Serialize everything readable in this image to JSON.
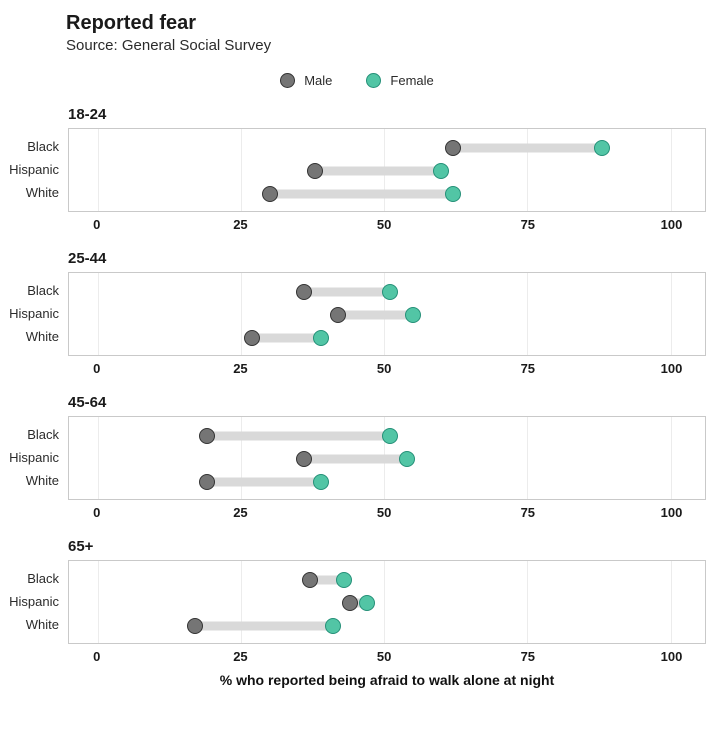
{
  "header": {
    "title": "Reported fear",
    "subtitle": "Source: General Social Survey"
  },
  "legend": {
    "items": [
      {
        "label": "Male",
        "fill": "#757575",
        "stroke": "#333333"
      },
      {
        "label": "Female",
        "fill": "#52c5a5",
        "stroke": "#259078"
      }
    ]
  },
  "chart_data": {
    "type": "scatter",
    "subtype": "dumbbell",
    "title": "Reported fear",
    "subtitle": "Source: General Social Survey",
    "xlabel": "% who reported being afraid to walk alone at night",
    "series_names": [
      "Male",
      "Female"
    ],
    "x_ticks": [
      0,
      25,
      50,
      75,
      100
    ],
    "xlim": [
      -5,
      106
    ],
    "grid": true,
    "legend_position": "top-center",
    "colors": {
      "male_fill": "#757575",
      "male_stroke": "#333333",
      "female_fill": "#52c5a5",
      "female_stroke": "#259078",
      "connector": "#d9d9d9",
      "gridline": "#ececec",
      "panel_border": "#c9c9c9"
    },
    "panels": [
      {
        "title": "18-24",
        "rows": [
          {
            "label": "Black",
            "male": 62,
            "female": 88
          },
          {
            "label": "Hispanic",
            "male": 38,
            "female": 60
          },
          {
            "label": "White",
            "male": 30,
            "female": 62
          }
        ]
      },
      {
        "title": "25-44",
        "rows": [
          {
            "label": "Black",
            "male": 36,
            "female": 51
          },
          {
            "label": "Hispanic",
            "male": 42,
            "female": 55
          },
          {
            "label": "White",
            "male": 27,
            "female": 39
          }
        ]
      },
      {
        "title": "45-64",
        "rows": [
          {
            "label": "Black",
            "male": 19,
            "female": 51
          },
          {
            "label": "Hispanic",
            "male": 36,
            "female": 54
          },
          {
            "label": "White",
            "male": 19,
            "female": 39
          }
        ]
      },
      {
        "title": "65+",
        "rows": [
          {
            "label": "Black",
            "male": 37,
            "female": 43
          },
          {
            "label": "Hispanic",
            "male": 44,
            "female": 47
          },
          {
            "label": "White",
            "male": 17,
            "female": 41
          }
        ]
      }
    ]
  }
}
